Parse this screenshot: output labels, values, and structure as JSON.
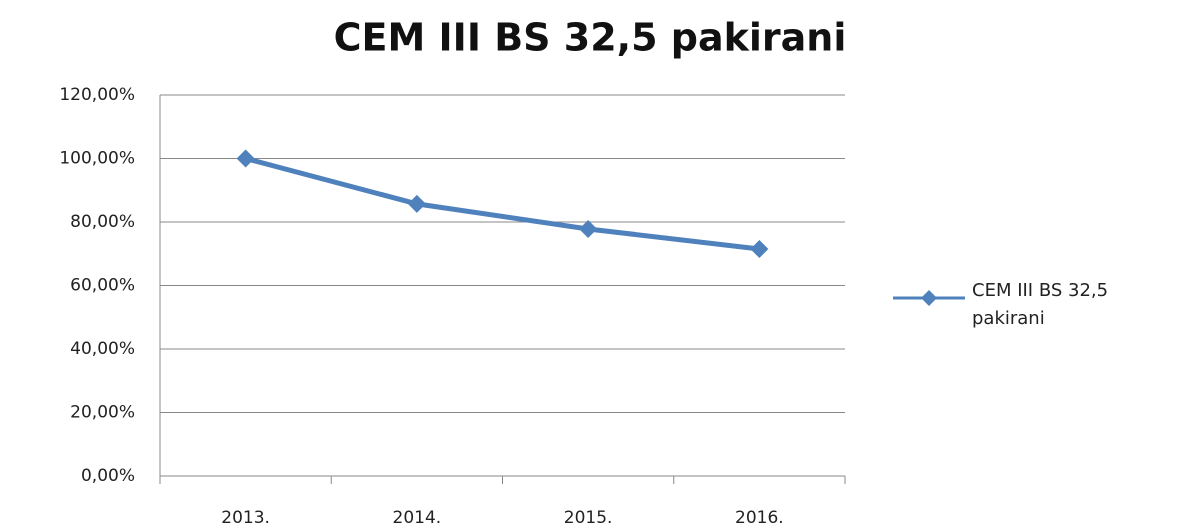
{
  "chart_data": {
    "type": "line",
    "title": "CEM III BS 32,5 pakirani",
    "categories": [
      "2013.",
      "2014.",
      "2015.",
      "2016."
    ],
    "series": [
      {
        "name": "CEM III BS 32,5 pakirani",
        "color": "#4f81bd",
        "values": [
          100,
          85.7,
          77.8,
          71.5
        ]
      }
    ],
    "ylim": [
      0,
      120
    ],
    "yticks": [
      {
        "value": 0,
        "label": "0,00%"
      },
      {
        "value": 20,
        "label": "20,00%"
      },
      {
        "value": 40,
        "label": "40,00%"
      },
      {
        "value": 60,
        "label": "60,00%"
      },
      {
        "value": 80,
        "label": "80,00%"
      },
      {
        "value": 100,
        "label": "100,00%"
      },
      {
        "value": 120,
        "label": "120,00%"
      }
    ],
    "grid": true,
    "legend": "right"
  }
}
